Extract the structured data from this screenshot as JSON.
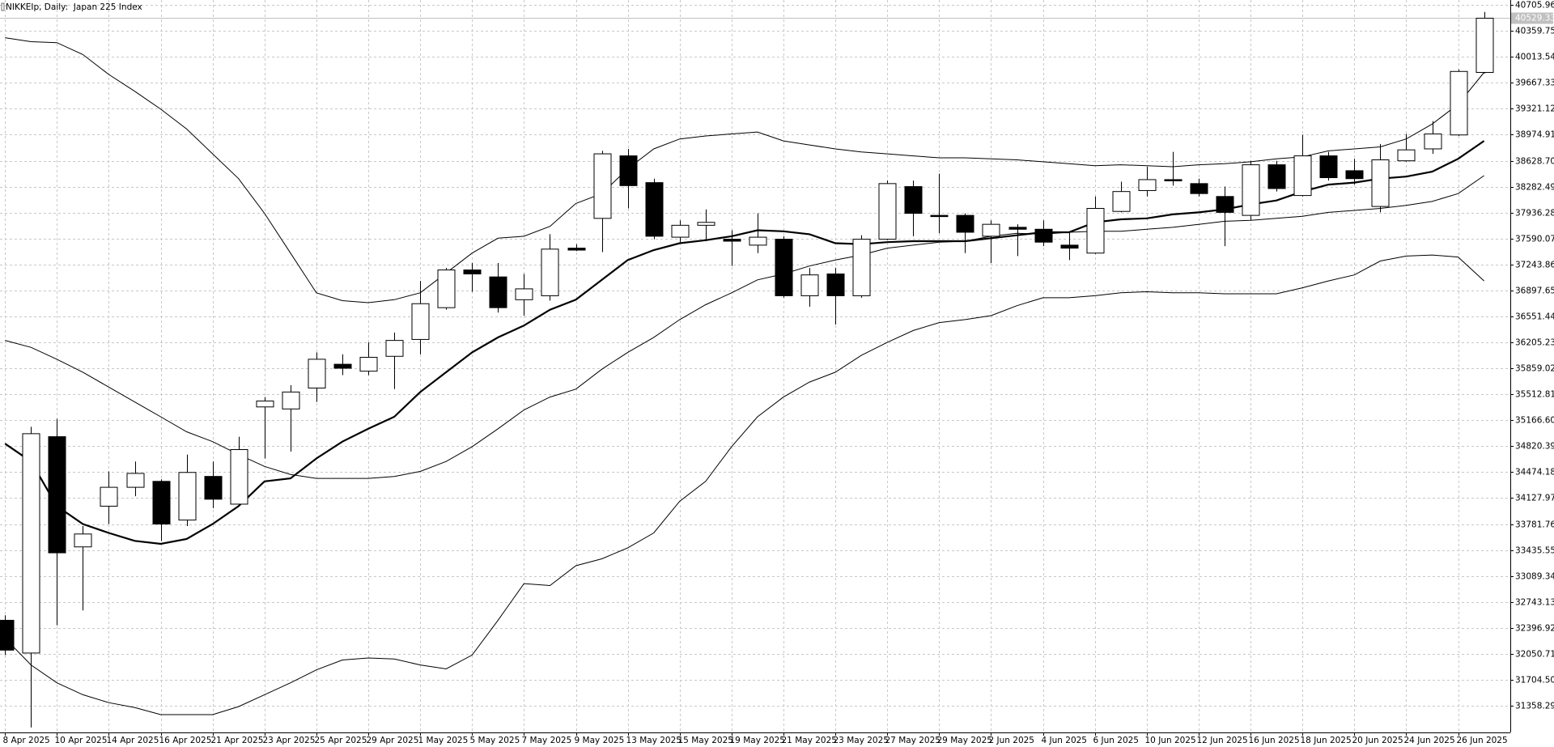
{
  "chart_data": {
    "type": "candlestick",
    "title": "NIKKEIp, Daily:  Japan 225 Index",
    "categories": [
      "8 Apr 2025",
      null,
      "10 Apr 2025",
      null,
      "14 Apr 2025",
      null,
      "16 Apr 2025",
      null,
      "21 Apr 2025",
      null,
      "23 Apr 2025",
      null,
      "25 Apr 2025",
      null,
      "29 Apr 2025",
      null,
      "1 May 2025",
      null,
      "5 May 2025",
      null,
      "7 May 2025",
      null,
      "9 May 2025",
      null,
      "13 May 2025",
      null,
      "15 May 2025",
      null,
      "19 May 2025",
      null,
      "21 May 2025",
      null,
      "23 May 2025",
      null,
      "27 May 2025",
      null,
      "29 May 2025",
      null,
      "2 Jun 2025",
      null,
      "4 Jun 2025",
      null,
      "6 Jun 2025",
      null,
      "10 Jun 2025",
      null,
      "12 Jun 2025",
      null,
      "16 Jun 2025",
      null,
      "18 Jun 2025",
      null,
      "20 Jun 2025",
      null,
      "24 Jun 2025",
      null,
      "26 Jun 2025",
      null
    ],
    "open": [
      32498,
      32061,
      34947,
      33477,
      34020,
      34272,
      34351,
      33835,
      34417,
      34047,
      35344,
      35317,
      35596,
      35913,
      35821,
      36019,
      36244,
      36668,
      37171,
      37078,
      36774,
      36827,
      37462,
      37859,
      38693,
      38336,
      37608,
      37767,
      37581,
      37502,
      37581,
      36827,
      37118,
      36827,
      37581,
      38283,
      37899,
      37899,
      37621,
      37740,
      37714,
      37502,
      37396,
      37952,
      38230,
      38376,
      38323,
      38151,
      37899,
      38574,
      38164,
      38693,
      38495,
      38018,
      38627,
      38786,
      38972,
      39806
    ],
    "high": [
      32564,
      35079,
      35185,
      33755,
      34484,
      34616,
      34378,
      34709,
      34616,
      34947,
      35476,
      35635,
      36072,
      36046,
      36204,
      36337,
      37025,
      37197,
      37264,
      37264,
      37118,
      37648,
      37515,
      38760,
      38786,
      38389,
      37833,
      37979,
      37701,
      37926,
      37621,
      37197,
      37197,
      37634,
      38363,
      38363,
      38455,
      37926,
      37833,
      37780,
      37833,
      37674,
      38151,
      38349,
      38548,
      38746,
      38389,
      38283,
      38627,
      38627,
      38972,
      38746,
      38654,
      38852,
      38985,
      39157,
      39845,
      40613
    ],
    "low": [
      32034,
      31068,
      32431,
      32630,
      33782,
      34153,
      33557,
      33755,
      33994,
      34020,
      34656,
      34748,
      35410,
      35768,
      35768,
      35582,
      36046,
      36641,
      36880,
      36602,
      36562,
      36761,
      37422,
      37409,
      37992,
      37581,
      37542,
      37555,
      37224,
      37396,
      36800,
      36681,
      36443,
      36800,
      37568,
      37621,
      37661,
      37396,
      37264,
      37356,
      37489,
      37303,
      37383,
      37939,
      38151,
      38296,
      38151,
      37489,
      37833,
      38217,
      38151,
      38363,
      38310,
      37939,
      38614,
      38720,
      38958,
      39792
    ],
    "close": [
      32100,
      34987,
      33398,
      33649,
      34272,
      34457,
      33782,
      34470,
      34113,
      34775,
      35423,
      35543,
      35980,
      35860,
      36006,
      36231,
      36721,
      37171,
      37118,
      36668,
      36919,
      37449,
      37436,
      38720,
      38296,
      37621,
      37767,
      37806,
      37555,
      37608,
      36827,
      37105,
      36827,
      37581,
      38323,
      37926,
      37886,
      37674,
      37780,
      37714,
      37542,
      37462,
      37992,
      38217,
      38376,
      38363,
      38190,
      37939,
      38574,
      38257,
      38693,
      38402,
      38389,
      38640,
      38773,
      38985,
      39819,
      40529.33
    ],
    "up_color": "#ffffff",
    "down_color": "#000000",
    "lines": [
      {
        "color": "#000000",
        "values": [
          40269,
          40216,
          40203,
          40044,
          39779,
          39554,
          39316,
          39051,
          38720,
          38389,
          37926,
          37396,
          36866,
          36761,
          36734,
          36774,
          36866,
          37131,
          37396,
          37595,
          37621,
          37753,
          38058,
          38190,
          38521,
          38786,
          38918,
          38958,
          38985,
          39011,
          38892,
          38839,
          38786,
          38746,
          38720,
          38693,
          38667,
          38667,
          38654,
          38640,
          38614,
          38588,
          38561,
          38574,
          38561,
          38548,
          38574,
          38588,
          38614,
          38654,
          38680,
          38760,
          38786,
          38813,
          38918,
          39117,
          39382,
          39806
        ]
      },
      {
        "color": "#000000",
        "values": [
          36231,
          36138,
          35980,
          35807,
          35609,
          35410,
          35212,
          35013,
          34881,
          34709,
          34550,
          34444,
          34391,
          34391,
          34391,
          34417,
          34484,
          34616,
          34814,
          35053,
          35304,
          35476,
          35582,
          35847,
          36072,
          36271,
          36509,
          36708,
          36866,
          37039,
          37118,
          37224,
          37303,
          37370,
          37462,
          37502,
          37542,
          37555,
          37621,
          37661,
          37648,
          37674,
          37687,
          37687,
          37714,
          37740,
          37780,
          37820,
          37833,
          37859,
          37886,
          37939,
          37965,
          37992,
          38032,
          38085,
          38190,
          38429
        ]
      },
      {
        "color": "#000000",
        "bold": true,
        "values": [
          34854,
          34616,
          34020,
          33782,
          33663,
          33557,
          33517,
          33583,
          33782,
          34020,
          34351,
          34391,
          34656,
          34881,
          35053,
          35212,
          35543,
          35807,
          36072,
          36271,
          36430,
          36641,
          36774,
          37039,
          37303,
          37436,
          37528,
          37568,
          37621,
          37701,
          37687,
          37648,
          37528,
          37515,
          37542,
          37555,
          37555,
          37555,
          37595,
          37634,
          37674,
          37674,
          37806,
          37846,
          37859,
          37912,
          37939,
          37979,
          38045,
          38098,
          38217,
          38310,
          38336,
          38389,
          38416,
          38482,
          38654,
          38892
        ]
      },
      {
        "color": "#000000",
        "values": [
          32259,
          31902,
          31664,
          31505,
          31399,
          31333,
          31240,
          31240,
          31240,
          31346,
          31505,
          31664,
          31836,
          31968,
          31995,
          31981,
          31902,
          31849,
          32034,
          32498,
          32987,
          32961,
          33226,
          33318,
          33464,
          33663,
          34086,
          34351,
          34814,
          35212,
          35476,
          35675,
          35807,
          36032,
          36204,
          36363,
          36469,
          36509,
          36562,
          36694,
          36800,
          36800,
          36827,
          36866,
          36880,
          36866,
          36866,
          36853,
          36853,
          36853,
          36933,
          37025,
          37105,
          37290,
          37356,
          37370,
          37343,
          37025
        ]
      }
    ],
    "last_price": 40529.33,
    "last_price_color": "#c0c0c0",
    "ylim": [
      31002,
      40772
    ],
    "yticks": [
      31358.29,
      {
        "value": 31704.5,
        "label": "31704.50"
      },
      32050.71,
      32396.92,
      32743.13,
      33089.34,
      33435.55,
      33781.76,
      34127.97,
      34474.18,
      34820.39,
      {
        "value": 35166.6,
        "label": "35166.60"
      },
      35512.81,
      35859.02,
      36205.23,
      36551.44,
      36897.65,
      37243.86,
      37590.07,
      37936.28,
      38282.49,
      {
        "value": 38628.7,
        "label": "38628.70"
      },
      38974.91,
      39321.12,
      39667.33,
      40013.54,
      40359.75,
      40705.96
    ],
    "grid": true
  }
}
